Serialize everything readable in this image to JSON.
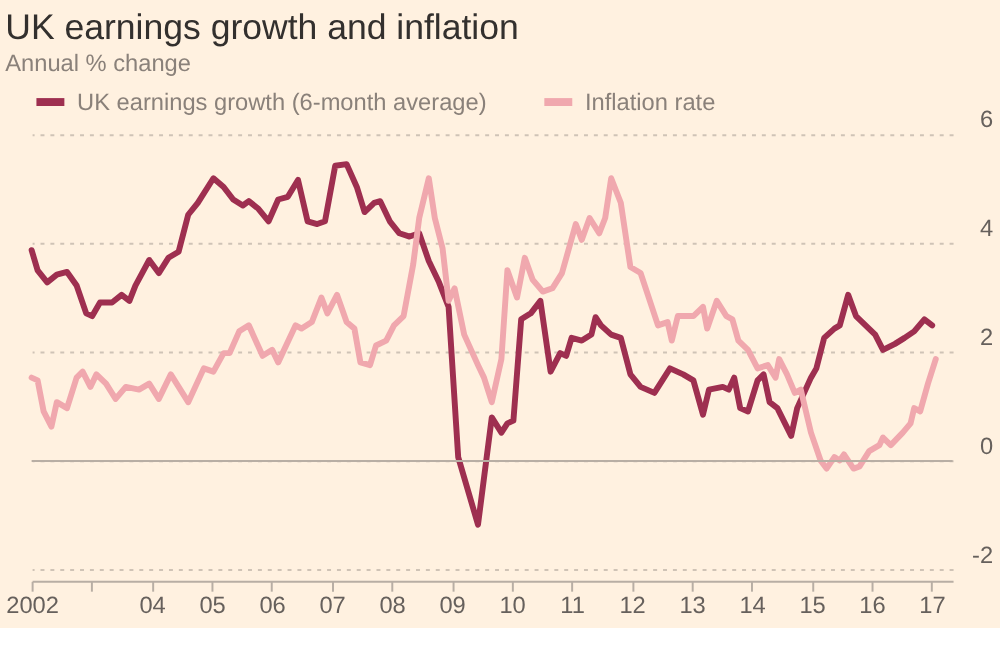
{
  "chart_data": {
    "type": "line",
    "title": "UK earnings growth and inflation",
    "subtitle": "Annual % change",
    "xlim": [
      2002,
      2017.35
    ],
    "ylim": [
      -2.2,
      6
    ],
    "xticks": [
      {
        "value": 2002,
        "label": "2002"
      },
      {
        "value": 2003,
        "label": null
      },
      {
        "value": 2004,
        "label": "04"
      },
      {
        "value": 2005,
        "label": "05"
      },
      {
        "value": 2006,
        "label": "06"
      },
      {
        "value": 2007,
        "label": "07"
      },
      {
        "value": 2008,
        "label": "08"
      },
      {
        "value": 2009,
        "label": "09"
      },
      {
        "value": 2010,
        "label": "10"
      },
      {
        "value": 2011,
        "label": "11"
      },
      {
        "value": 2012,
        "label": "12"
      },
      {
        "value": 2013,
        "label": "13"
      },
      {
        "value": 2014,
        "label": "14"
      },
      {
        "value": 2015,
        "label": "15"
      },
      {
        "value": 2016,
        "label": "16"
      },
      {
        "value": 2017,
        "label": "17"
      }
    ],
    "yticks": [
      -2,
      0,
      2,
      4,
      6
    ],
    "grid": "y",
    "legend": "top left",
    "marker": "none",
    "line_style": "solid",
    "ref_lines": [
      {
        "axis": "y",
        "value": 0,
        "label": null,
        "color": "#b8aea4"
      }
    ],
    "series": [
      {
        "name": "UK earnings growth (6-month average)",
        "color": "#9e2f50",
        "x": [
          2002.0,
          2002.1,
          2002.26,
          2002.42,
          2002.59,
          2002.75,
          2002.91,
          2003.01,
          2003.14,
          2003.34,
          2003.5,
          2003.63,
          2003.73,
          2003.96,
          2004.12,
          2004.28,
          2004.45,
          2004.61,
          2004.77,
          2005.03,
          2005.2,
          2005.36,
          2005.52,
          2005.62,
          2005.78,
          2005.95,
          2006.11,
          2006.27,
          2006.44,
          2006.6,
          2006.76,
          2006.89,
          2007.06,
          2007.25,
          2007.42,
          2007.55,
          2007.71,
          2007.81,
          2007.97,
          2008.13,
          2008.3,
          2008.46,
          2008.62,
          2008.79,
          2008.95,
          2009.11,
          2009.44,
          2009.67,
          2009.83,
          2009.93,
          2010.03,
          2010.16,
          2010.32,
          2010.48,
          2010.65,
          2010.81,
          2010.91,
          2011.0,
          2011.17,
          2011.33,
          2011.4,
          2011.49,
          2011.66,
          2011.82,
          2011.98,
          2012.15,
          2012.38,
          2012.64,
          2012.86,
          2013.03,
          2013.19,
          2013.29,
          2013.52,
          2013.62,
          2013.71,
          2013.81,
          2013.94,
          2014.1,
          2014.2,
          2014.3,
          2014.43,
          2014.66,
          2014.76,
          2014.99,
          2015.08,
          2015.21,
          2015.38,
          2015.47,
          2015.61,
          2015.74,
          2015.9,
          2016.06,
          2016.19,
          2016.39,
          2016.55,
          2016.71,
          2016.88,
          2017.01
        ],
        "values": [
          3.87,
          3.5,
          3.28,
          3.42,
          3.47,
          3.22,
          2.71,
          2.66,
          2.91,
          2.91,
          3.05,
          2.94,
          3.22,
          3.69,
          3.45,
          3.73,
          3.84,
          4.52,
          4.74,
          5.19,
          5.03,
          4.8,
          4.69,
          4.77,
          4.63,
          4.4,
          4.8,
          4.85,
          5.16,
          4.4,
          4.35,
          4.4,
          5.42,
          5.45,
          5.03,
          4.57,
          4.74,
          4.77,
          4.4,
          4.18,
          4.12,
          4.18,
          3.67,
          3.28,
          2.83,
          0.07,
          -1.17,
          0.8,
          0.52,
          0.69,
          0.74,
          2.6,
          2.71,
          2.94,
          1.64,
          1.98,
          1.93,
          2.26,
          2.21,
          2.32,
          2.64,
          2.49,
          2.32,
          2.26,
          1.59,
          1.36,
          1.25,
          1.7,
          1.59,
          1.48,
          0.85,
          1.31,
          1.36,
          1.31,
          1.53,
          0.97,
          0.91,
          1.48,
          1.59,
          1.08,
          0.97,
          0.46,
          0.97,
          1.53,
          1.7,
          2.26,
          2.43,
          2.49,
          3.05,
          2.66,
          2.49,
          2.32,
          2.04,
          2.15,
          2.26,
          2.38,
          2.6,
          2.49
        ]
      },
      {
        "name": "Inflation rate",
        "color": "#f0a8ae",
        "x": [
          2002.0,
          2002.1,
          2002.2,
          2002.33,
          2002.42,
          2002.59,
          2002.75,
          2002.85,
          2002.98,
          2003.08,
          2003.24,
          2003.4,
          2003.57,
          2003.79,
          2003.96,
          2004.12,
          2004.32,
          2004.61,
          2004.87,
          2005.03,
          2005.2,
          2005.3,
          2005.46,
          2005.62,
          2005.85,
          2006.01,
          2006.11,
          2006.4,
          2006.5,
          2006.67,
          2006.83,
          2006.93,
          2007.09,
          2007.25,
          2007.38,
          2007.48,
          2007.64,
          2007.74,
          2007.91,
          2008.04,
          2008.2,
          2008.36,
          2008.46,
          2008.62,
          2008.72,
          2008.85,
          2008.95,
          2009.05,
          2009.21,
          2009.44,
          2009.54,
          2009.67,
          2009.83,
          2009.93,
          2010.09,
          2010.22,
          2010.35,
          2010.52,
          2010.68,
          2010.84,
          2011.07,
          2011.17,
          2011.3,
          2011.46,
          2011.56,
          2011.66,
          2011.82,
          2011.98,
          2012.15,
          2012.44,
          2012.6,
          2012.67,
          2012.77,
          2013.03,
          2013.19,
          2013.26,
          2013.42,
          2013.58,
          2013.68,
          2013.78,
          2013.94,
          2014.1,
          2014.27,
          2014.4,
          2014.46,
          2014.59,
          2014.72,
          2014.82,
          2014.99,
          2015.15,
          2015.25,
          2015.38,
          2015.47,
          2015.54,
          2015.7,
          2015.8,
          2015.96,
          2016.13,
          2016.19,
          2016.32,
          2016.52,
          2016.65,
          2016.71,
          2016.81,
          2016.94,
          2017.07
        ],
        "values": [
          1.53,
          1.48,
          0.91,
          0.63,
          1.08,
          0.97,
          1.53,
          1.64,
          1.36,
          1.59,
          1.42,
          1.14,
          1.36,
          1.31,
          1.42,
          1.14,
          1.59,
          1.08,
          1.7,
          1.64,
          1.98,
          1.98,
          2.38,
          2.49,
          1.93,
          2.04,
          1.81,
          2.49,
          2.43,
          2.55,
          3.0,
          2.71,
          3.05,
          2.55,
          2.43,
          1.81,
          1.76,
          2.12,
          2.21,
          2.49,
          2.66,
          3.61,
          4.46,
          5.19,
          4.46,
          3.9,
          2.94,
          3.17,
          2.32,
          1.76,
          1.53,
          1.08,
          1.87,
          3.5,
          3.0,
          3.73,
          3.33,
          3.11,
          3.17,
          3.45,
          4.35,
          4.06,
          4.46,
          4.18,
          4.46,
          5.19,
          4.74,
          3.56,
          3.45,
          2.49,
          2.55,
          2.21,
          2.66,
          2.66,
          2.83,
          2.43,
          2.94,
          2.66,
          2.6,
          2.21,
          2.04,
          1.7,
          1.76,
          1.53,
          1.87,
          1.59,
          1.25,
          1.31,
          0.52,
          0.01,
          -0.14,
          0.07,
          0.01,
          0.12,
          -0.14,
          -0.1,
          0.18,
          0.29,
          0.43,
          0.29,
          0.52,
          0.69,
          0.97,
          0.91,
          1.42,
          1.87
        ]
      }
    ]
  }
}
